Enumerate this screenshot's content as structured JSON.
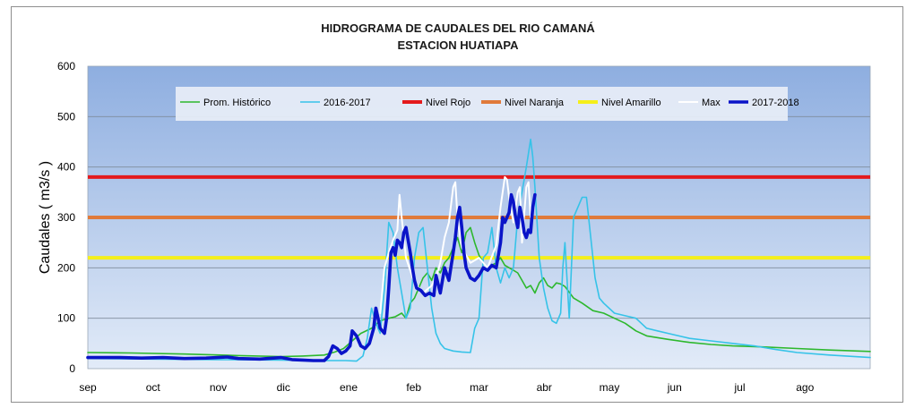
{
  "chart_data": {
    "type": "line",
    "title": "HIDROGRAMA DE CAUDALES DEL RIO CAMANÁ",
    "subtitle": "ESTACION HUATIAPA",
    "ylabel": "Caudales ( m3/s )",
    "xlabel": "",
    "ylim": [
      0,
      600
    ],
    "y_ticks": [
      "0",
      "100",
      "200",
      "300",
      "400",
      "500",
      "600"
    ],
    "x_ticks": [
      "sep",
      "oct",
      "nov",
      "dic",
      "ene",
      "feb",
      "mar",
      "abr",
      "may",
      "jun",
      "jul",
      "ago"
    ],
    "grid": "horizontal",
    "legend_position": "top",
    "background": "blue-gradient",
    "series": [
      {
        "name": "Prom. Histórico",
        "color": "#2db82d",
        "points": [
          [
            0,
            32
          ],
          [
            20,
            31
          ],
          [
            45,
            29
          ],
          [
            70,
            26
          ],
          [
            90,
            24
          ],
          [
            100,
            25
          ],
          [
            110,
            27
          ],
          [
            115,
            33
          ],
          [
            119,
            40
          ],
          [
            123,
            55
          ],
          [
            127,
            70
          ],
          [
            132,
            80
          ],
          [
            136,
            95
          ],
          [
            140,
            100
          ],
          [
            143,
            103
          ],
          [
            146,
            110
          ],
          [
            148,
            100
          ],
          [
            150,
            130
          ],
          [
            152,
            140
          ],
          [
            154,
            160
          ],
          [
            156,
            180
          ],
          [
            158,
            190
          ],
          [
            160,
            175
          ],
          [
            162,
            200
          ],
          [
            164,
            190
          ],
          [
            166,
            210
          ],
          [
            168,
            220
          ],
          [
            170,
            240
          ],
          [
            172,
            260
          ],
          [
            174,
            230
          ],
          [
            176,
            270
          ],
          [
            178,
            280
          ],
          [
            180,
            250
          ],
          [
            182,
            225
          ],
          [
            184,
            210
          ],
          [
            186,
            200
          ],
          [
            188,
            205
          ],
          [
            190,
            210
          ],
          [
            192,
            220
          ],
          [
            194,
            205
          ],
          [
            196,
            200
          ],
          [
            198,
            195
          ],
          [
            200,
            190
          ],
          [
            202,
            175
          ],
          [
            204,
            160
          ],
          [
            206,
            165
          ],
          [
            208,
            150
          ],
          [
            210,
            170
          ],
          [
            212,
            180
          ],
          [
            214,
            165
          ],
          [
            216,
            160
          ],
          [
            218,
            170
          ],
          [
            220,
            168
          ],
          [
            222,
            163
          ],
          [
            226,
            140
          ],
          [
            230,
            130
          ],
          [
            235,
            115
          ],
          [
            240,
            110
          ],
          [
            245,
            100
          ],
          [
            250,
            90
          ],
          [
            255,
            75
          ],
          [
            260,
            65
          ],
          [
            270,
            58
          ],
          [
            280,
            52
          ],
          [
            290,
            48
          ],
          [
            300,
            45
          ],
          [
            315,
            43
          ],
          [
            330,
            40
          ],
          [
            345,
            37
          ],
          [
            364,
            34
          ]
        ]
      },
      {
        "name": "2016-2017",
        "color": "#36c3e8",
        "points": [
          [
            0,
            20
          ],
          [
            30,
            19
          ],
          [
            60,
            18
          ],
          [
            90,
            17
          ],
          [
            100,
            16
          ],
          [
            110,
            16
          ],
          [
            120,
            16
          ],
          [
            125,
            15
          ],
          [
            128,
            25
          ],
          [
            130,
            60
          ],
          [
            132,
            120
          ],
          [
            134,
            90
          ],
          [
            136,
            70
          ],
          [
            138,
            160
          ],
          [
            140,
            290
          ],
          [
            142,
            270
          ],
          [
            144,
            200
          ],
          [
            146,
            150
          ],
          [
            148,
            100
          ],
          [
            150,
            120
          ],
          [
            152,
            220
          ],
          [
            154,
            270
          ],
          [
            156,
            280
          ],
          [
            158,
            200
          ],
          [
            160,
            120
          ],
          [
            162,
            70
          ],
          [
            164,
            50
          ],
          [
            166,
            40
          ],
          [
            170,
            35
          ],
          [
            174,
            33
          ],
          [
            178,
            32
          ],
          [
            180,
            80
          ],
          [
            182,
            100
          ],
          [
            184,
            220
          ],
          [
            186,
            230
          ],
          [
            188,
            280
          ],
          [
            190,
            200
          ],
          [
            192,
            170
          ],
          [
            194,
            200
          ],
          [
            196,
            180
          ],
          [
            198,
            200
          ],
          [
            200,
            300
          ],
          [
            202,
            350
          ],
          [
            204,
            400
          ],
          [
            206,
            455
          ],
          [
            207,
            420
          ],
          [
            208,
            360
          ],
          [
            210,
            220
          ],
          [
            212,
            160
          ],
          [
            214,
            120
          ],
          [
            216,
            95
          ],
          [
            218,
            90
          ],
          [
            220,
            110
          ],
          [
            221,
            200
          ],
          [
            222,
            250
          ],
          [
            224,
            100
          ],
          [
            226,
            300
          ],
          [
            228,
            320
          ],
          [
            230,
            340
          ],
          [
            232,
            340
          ],
          [
            234,
            260
          ],
          [
            236,
            180
          ],
          [
            238,
            140
          ],
          [
            240,
            130
          ],
          [
            245,
            110
          ],
          [
            250,
            105
          ],
          [
            255,
            100
          ],
          [
            260,
            80
          ],
          [
            265,
            75
          ],
          [
            270,
            70
          ],
          [
            280,
            60
          ],
          [
            290,
            55
          ],
          [
            300,
            50
          ],
          [
            310,
            45
          ],
          [
            320,
            38
          ],
          [
            330,
            32
          ],
          [
            345,
            27
          ],
          [
            364,
            22
          ]
        ]
      },
      {
        "name": "Nivel Rojo",
        "color": "#e41a1c",
        "value": 380
      },
      {
        "name": "Nivel Naranja",
        "color": "#e07a3a",
        "value": 300
      },
      {
        "name": "Nivel Amarillo",
        "color": "#f5ef1a",
        "value": 220
      },
      {
        "name": "Max",
        "color": "#ffffff",
        "points": [
          [
            136,
            110
          ],
          [
            138,
            200
          ],
          [
            140,
            230
          ],
          [
            142,
            255
          ],
          [
            144,
            275
          ],
          [
            145,
            345
          ],
          [
            146,
            300
          ],
          [
            148,
            220
          ],
          [
            152,
            170
          ],
          [
            156,
            150
          ],
          [
            160,
            165
          ],
          [
            162,
            180
          ],
          [
            164,
            210
          ],
          [
            166,
            260
          ],
          [
            168,
            290
          ],
          [
            170,
            360
          ],
          [
            171,
            370
          ],
          [
            172,
            300
          ],
          [
            174,
            240
          ],
          [
            178,
            210
          ],
          [
            182,
            220
          ],
          [
            186,
            200
          ],
          [
            190,
            245
          ],
          [
            192,
            320
          ],
          [
            194,
            380
          ],
          [
            195,
            375
          ],
          [
            196,
            340
          ],
          [
            198,
            290
          ],
          [
            200,
            350
          ],
          [
            201,
            360
          ],
          [
            202,
            250
          ],
          [
            204,
            360
          ],
          [
            205,
            370
          ],
          [
            206,
            300
          ]
        ]
      },
      {
        "name": "2017-2018",
        "color": "#0a14c8",
        "points": [
          [
            0,
            22
          ],
          [
            15,
            22
          ],
          [
            25,
            21
          ],
          [
            35,
            22
          ],
          [
            45,
            20
          ],
          [
            55,
            21
          ],
          [
            65,
            23
          ],
          [
            70,
            20
          ],
          [
            80,
            19
          ],
          [
            90,
            22
          ],
          [
            95,
            18
          ],
          [
            100,
            17
          ],
          [
            105,
            16
          ],
          [
            110,
            16
          ],
          [
            112,
            24
          ],
          [
            114,
            45
          ],
          [
            116,
            40
          ],
          [
            118,
            30
          ],
          [
            120,
            35
          ],
          [
            122,
            45
          ],
          [
            123,
            75
          ],
          [
            125,
            65
          ],
          [
            127,
            45
          ],
          [
            129,
            40
          ],
          [
            131,
            50
          ],
          [
            133,
            80
          ],
          [
            134,
            120
          ],
          [
            136,
            80
          ],
          [
            138,
            70
          ],
          [
            139,
            100
          ],
          [
            140,
            160
          ],
          [
            141,
            230
          ],
          [
            142,
            240
          ],
          [
            143,
            225
          ],
          [
            144,
            255
          ],
          [
            145,
            250
          ],
          [
            146,
            240
          ],
          [
            147,
            270
          ],
          [
            148,
            280
          ],
          [
            149,
            255
          ],
          [
            150,
            230
          ],
          [
            151,
            200
          ],
          [
            152,
            175
          ],
          [
            153,
            160
          ],
          [
            155,
            155
          ],
          [
            157,
            145
          ],
          [
            159,
            150
          ],
          [
            161,
            145
          ],
          [
            162,
            185
          ],
          [
            164,
            150
          ],
          [
            166,
            200
          ],
          [
            168,
            175
          ],
          [
            170,
            230
          ],
          [
            171,
            260
          ],
          [
            172,
            300
          ],
          [
            173,
            320
          ],
          [
            174,
            280
          ],
          [
            175,
            230
          ],
          [
            176,
            200
          ],
          [
            178,
            180
          ],
          [
            180,
            175
          ],
          [
            182,
            185
          ],
          [
            184,
            200
          ],
          [
            186,
            195
          ],
          [
            188,
            205
          ],
          [
            190,
            200
          ],
          [
            192,
            250
          ],
          [
            193,
            300
          ],
          [
            194,
            290
          ],
          [
            196,
            310
          ],
          [
            197,
            345
          ],
          [
            198,
            330
          ],
          [
            199,
            300
          ],
          [
            200,
            280
          ],
          [
            201,
            320
          ],
          [
            202,
            300
          ],
          [
            203,
            270
          ],
          [
            204,
            260
          ],
          [
            205,
            275
          ],
          [
            206,
            270
          ],
          [
            207,
            320
          ],
          [
            208,
            345
          ]
        ]
      }
    ]
  }
}
